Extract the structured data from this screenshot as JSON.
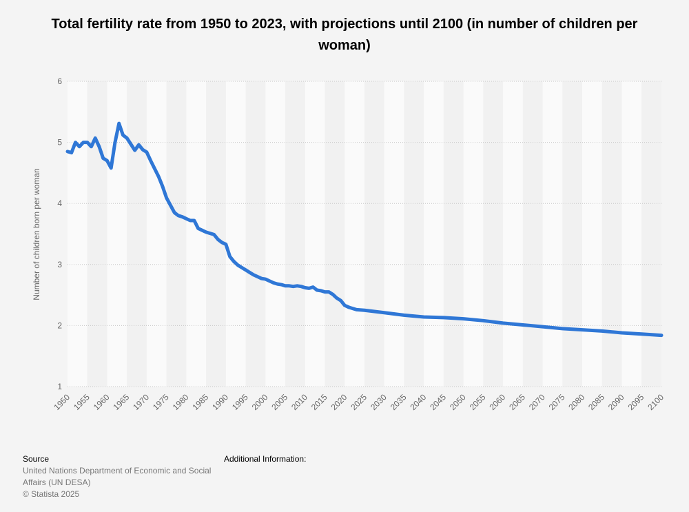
{
  "chart_data": {
    "type": "line",
    "title": "Total fertility rate from 1950 to 2023, with projections until 2100 (in number of children per woman)",
    "xlabel": "",
    "ylabel": "Number of children born per woman",
    "xlim": [
      1950,
      2100
    ],
    "ylim": [
      1,
      6
    ],
    "xticks": [
      "1950",
      "1955",
      "1960",
      "1965",
      "1970",
      "1975",
      "1980",
      "1985",
      "1990",
      "1995",
      "2000",
      "2005",
      "2010",
      "2015",
      "2020",
      "2025",
      "2030",
      "2035",
      "2040",
      "2045",
      "2050",
      "2055",
      "2060",
      "2065",
      "2070",
      "2075",
      "2080",
      "2085",
      "2090",
      "2095",
      "2100"
    ],
    "yticks": [
      "1",
      "2",
      "3",
      "4",
      "5",
      "6"
    ],
    "grid": true,
    "series_color": "#2f77d6",
    "series": [
      {
        "name": "Total fertility rate",
        "x": [
          1950,
          1951,
          1952,
          1953,
          1954,
          1955,
          1956,
          1957,
          1958,
          1959,
          1960,
          1961,
          1962,
          1963,
          1964,
          1965,
          1966,
          1967,
          1968,
          1969,
          1970,
          1971,
          1972,
          1973,
          1974,
          1975,
          1976,
          1977,
          1978,
          1979,
          1980,
          1981,
          1982,
          1983,
          1984,
          1985,
          1986,
          1987,
          1988,
          1989,
          1990,
          1991,
          1992,
          1993,
          1994,
          1995,
          1996,
          1997,
          1998,
          1999,
          2000,
          2001,
          2002,
          2003,
          2004,
          2005,
          2006,
          2007,
          2008,
          2009,
          2010,
          2011,
          2012,
          2013,
          2014,
          2015,
          2016,
          2017,
          2018,
          2019,
          2020,
          2021,
          2022,
          2023,
          2025,
          2030,
          2035,
          2040,
          2045,
          2050,
          2055,
          2060,
          2065,
          2070,
          2075,
          2080,
          2085,
          2090,
          2095,
          2100
        ],
        "values": [
          4.85,
          4.83,
          5.0,
          4.93,
          5.0,
          5.0,
          4.93,
          5.07,
          4.93,
          4.74,
          4.7,
          4.58,
          5.0,
          5.31,
          5.12,
          5.07,
          4.97,
          4.87,
          4.96,
          4.88,
          4.84,
          4.7,
          4.57,
          4.44,
          4.28,
          4.09,
          3.97,
          3.85,
          3.8,
          3.78,
          3.75,
          3.72,
          3.72,
          3.59,
          3.56,
          3.53,
          3.51,
          3.49,
          3.41,
          3.36,
          3.33,
          3.13,
          3.05,
          2.99,
          2.95,
          2.91,
          2.87,
          2.83,
          2.8,
          2.77,
          2.76,
          2.73,
          2.7,
          2.68,
          2.67,
          2.65,
          2.65,
          2.64,
          2.65,
          2.64,
          2.62,
          2.61,
          2.63,
          2.58,
          2.57,
          2.55,
          2.55,
          2.51,
          2.45,
          2.41,
          2.33,
          2.3,
          2.28,
          2.26,
          2.25,
          2.21,
          2.17,
          2.14,
          2.13,
          2.11,
          2.08,
          2.04,
          2.01,
          1.98,
          1.95,
          1.93,
          1.91,
          1.88,
          1.86,
          1.84
        ]
      }
    ]
  },
  "footer": {
    "source_heading": "Source",
    "source_line1": "United Nations Department of Economic and Social",
    "source_line2": "Affairs (UN DESA)",
    "copyright": "© Statista 2025",
    "additional_info": "Additional Information:"
  }
}
